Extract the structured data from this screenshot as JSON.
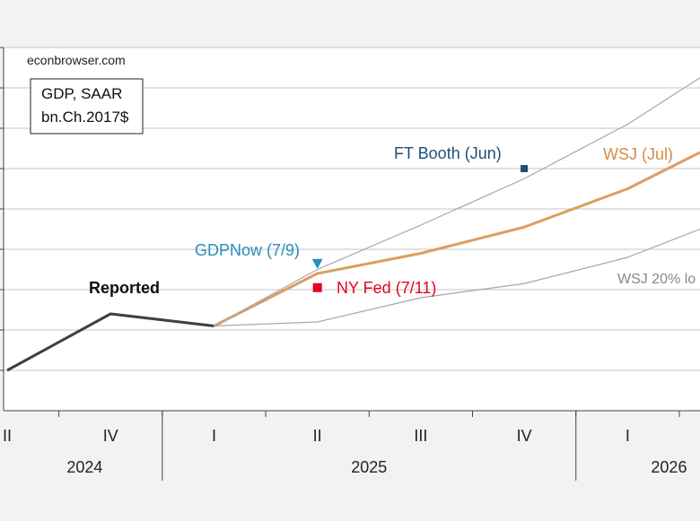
{
  "chart_data": {
    "type": "line",
    "title": "",
    "xlabel": "",
    "ylabel": "",
    "watermark": "econbrowser.com",
    "units_box": [
      "GDP, SAAR",
      "bn.Ch.2017$"
    ],
    "quarter_ticks": [
      "II",
      "IV",
      "I",
      "II",
      "III",
      "IV",
      "I"
    ],
    "quarter_tick_index": [
      0,
      2,
      4,
      6,
      8,
      10,
      12
    ],
    "year_labels": [
      {
        "label": "2024",
        "index": 1.5
      },
      {
        "label": "2025",
        "index": 7.0
      },
      {
        "label": "2026",
        "index": 12.8
      }
    ],
    "x_range": [
      0,
      13.4
    ],
    "y_range": [
      0,
      9
    ],
    "grid": "horizontal",
    "series": [
      {
        "name": "Reported",
        "color": "#404040",
        "width": 3,
        "points": [
          [
            0,
            1.0
          ],
          [
            2,
            2.4
          ],
          [
            4,
            2.1
          ]
        ]
      },
      {
        "name": "WSJ (Jul)",
        "color": "#dd9d62",
        "width": 3,
        "points": [
          [
            4,
            2.1
          ],
          [
            6,
            3.4
          ],
          [
            8,
            3.9
          ],
          [
            10,
            4.55
          ],
          [
            12,
            5.5
          ],
          [
            13.4,
            6.4
          ]
        ]
      },
      {
        "name": "WSJ 20% lo",
        "color": "#a6a6a6",
        "width": 1.2,
        "points": [
          [
            4,
            2.1
          ],
          [
            6,
            2.2
          ],
          [
            8,
            2.8
          ],
          [
            10,
            3.15
          ],
          [
            12,
            3.8
          ],
          [
            13.4,
            4.5
          ]
        ]
      },
      {
        "name": "",
        "color": "#a6a6a6",
        "width": 1.2,
        "points": [
          [
            4,
            2.1
          ],
          [
            6,
            3.5
          ],
          [
            8,
            4.6
          ],
          [
            10,
            5.75
          ],
          [
            12,
            7.1
          ],
          [
            13.4,
            8.25
          ]
        ]
      }
    ],
    "markers": [
      {
        "name": "FT Booth (Jun)",
        "shape": "square",
        "color": "#1f4e79",
        "x": 10,
        "y": 6.0
      },
      {
        "name": "GDPNow (7/9)",
        "shape": "triangle-down",
        "color": "#2a8cbd",
        "x": 6,
        "y": 3.65
      },
      {
        "name": "NY Fed (7/11)",
        "shape": "square",
        "color": "#e8001c",
        "x": 6,
        "y": 3.05
      }
    ],
    "annotations": [
      {
        "text": "Reported",
        "color": "#111111",
        "bold": true,
        "series": "Reported"
      },
      {
        "text": "FT Booth (Jun)",
        "color": "#1f4e79",
        "bold": false,
        "series": "FT Booth (Jun)"
      },
      {
        "text": "WSJ (Jul)",
        "color": "#d48a45",
        "bold": false,
        "series": "WSJ (Jul)"
      },
      {
        "text": "GDPNow (7/9)",
        "color": "#2a8cbd",
        "bold": false,
        "series": "GDPNow (7/9)"
      },
      {
        "text": "NY Fed (7/11)",
        "color": "#e8001c",
        "bold": false,
        "series": "NY Fed (7/11)"
      },
      {
        "text": "WSJ 20% lo",
        "color": "#888888",
        "bold": false,
        "series": "WSJ 20% lo"
      }
    ]
  }
}
